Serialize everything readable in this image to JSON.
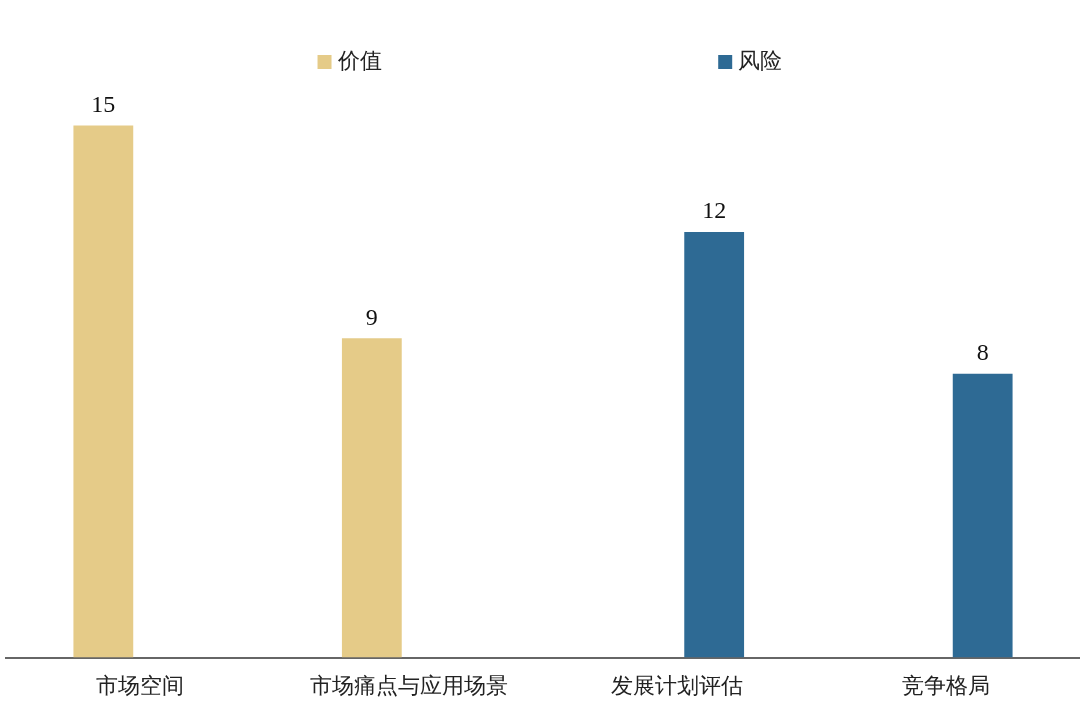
{
  "chart_data": {
    "type": "bar",
    "categories": [
      "市场空间",
      "市场痛点与应用场景",
      "发展计划评估",
      "竞争格局"
    ],
    "series": [
      {
        "name": "价值",
        "color": "#e5cb88",
        "values": [
          15,
          9,
          null,
          null
        ]
      },
      {
        "name": "风险",
        "color": "#2e6a94",
        "values": [
          null,
          null,
          12,
          8
        ]
      }
    ],
    "data_labels": true,
    "legend": "top",
    "grid": false
  }
}
